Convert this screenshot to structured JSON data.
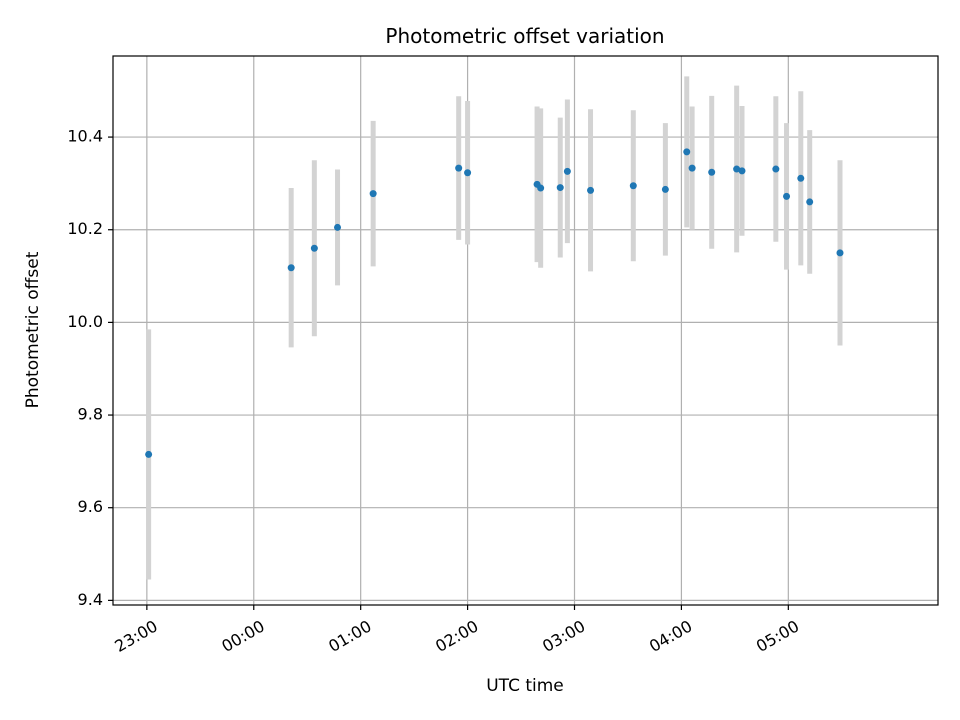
{
  "chart_data": {
    "type": "scatter",
    "title": "Photometric offset variation",
    "xlabel": "UTC time",
    "ylabel": "Photometric offset",
    "x_unit": "UTC time, continuing past midnight (24:xx = next day)",
    "xlim": [
      "22:41",
      "06:24"
    ],
    "ylim": [
      9.39,
      10.575
    ],
    "x_ticks": [
      "23:00",
      "00:00",
      "01:00",
      "02:00",
      "03:00",
      "04:00",
      "05:00"
    ],
    "y_ticks": [
      "9.4",
      "9.6",
      "9.8",
      "10.0",
      "10.2",
      "10.4"
    ],
    "grid": true,
    "point_color": "#1f77b4",
    "errorbar_color": "#d3d3d3",
    "points": [
      {
        "time": "23:01",
        "y": 9.715,
        "err": 0.27
      },
      {
        "time": "00:21",
        "y": 10.118,
        "err": 0.172
      },
      {
        "time": "00:34",
        "y": 10.16,
        "err": 0.19
      },
      {
        "time": "00:47",
        "y": 10.205,
        "err": 0.125
      },
      {
        "time": "01:07",
        "y": 10.278,
        "err": 0.157
      },
      {
        "time": "01:55",
        "y": 10.333,
        "err": 0.155
      },
      {
        "time": "02:00",
        "y": 10.323,
        "err": 0.155
      },
      {
        "time": "02:39",
        "y": 10.298,
        "err": 0.168
      },
      {
        "time": "02:41",
        "y": 10.29,
        "err": 0.172
      },
      {
        "time": "02:52",
        "y": 10.291,
        "err": 0.151
      },
      {
        "time": "02:56",
        "y": 10.326,
        "err": 0.155
      },
      {
        "time": "03:09",
        "y": 10.285,
        "err": 0.175
      },
      {
        "time": "03:33",
        "y": 10.295,
        "err": 0.163
      },
      {
        "time": "03:51",
        "y": 10.287,
        "err": 0.143
      },
      {
        "time": "04:03",
        "y": 10.368,
        "err": 0.163
      },
      {
        "time": "04:06",
        "y": 10.333,
        "err": 0.133
      },
      {
        "time": "04:17",
        "y": 10.324,
        "err": 0.165
      },
      {
        "time": "04:31",
        "y": 10.331,
        "err": 0.18
      },
      {
        "time": "04:34",
        "y": 10.327,
        "err": 0.14
      },
      {
        "time": "04:53",
        "y": 10.331,
        "err": 0.157
      },
      {
        "time": "04:59",
        "y": 10.272,
        "err": 0.158
      },
      {
        "time": "05:07",
        "y": 10.311,
        "err": 0.188
      },
      {
        "time": "05:12",
        "y": 10.26,
        "err": 0.155
      },
      {
        "time": "05:29",
        "y": 10.15,
        "err": 0.2
      }
    ]
  }
}
